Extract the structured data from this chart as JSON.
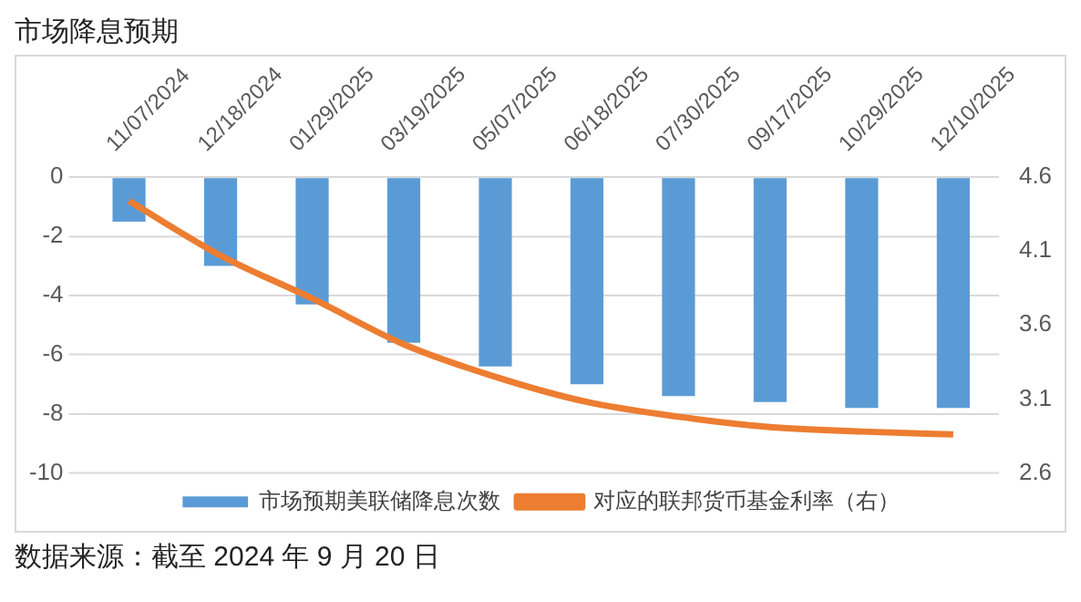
{
  "chart_data": {
    "type": "bar",
    "title": "市场降息预期",
    "categories": [
      "11/07/2024",
      "12/18/2024",
      "01/29/2025",
      "03/19/2025",
      "05/07/2025",
      "06/18/2025",
      "07/30/2025",
      "09/17/2025",
      "10/29/2025",
      "12/10/2025"
    ],
    "series": [
      {
        "name": "市场预期美联储降息次数",
        "color": "#5b9bd5",
        "values": [
          -1.5,
          -3.0,
          -4.3,
          -5.6,
          -6.4,
          -7.0,
          -7.4,
          -7.6,
          -7.8,
          -7.8
        ]
      },
      {
        "name": "对应的联邦货币基金利率（右）",
        "type": "line",
        "axis": "y2",
        "color": "#ed7d31",
        "values": [
          4.44,
          4.07,
          3.78,
          3.47,
          3.25,
          3.08,
          2.98,
          2.91,
          2.88,
          2.86
        ]
      }
    ],
    "ylim": [
      -10,
      0
    ],
    "yticks": [
      -10,
      -8,
      -6,
      -4,
      -2,
      0
    ],
    "y2lim": [
      2.6,
      4.6
    ],
    "y2ticks": [
      2.6,
      3.1,
      3.6,
      4.1,
      4.6
    ],
    "grid": "y",
    "legend": "bottom",
    "marker": "none",
    "annotations": [
      "数据来源：截至 2024 年 9 月 20 日"
    ]
  }
}
